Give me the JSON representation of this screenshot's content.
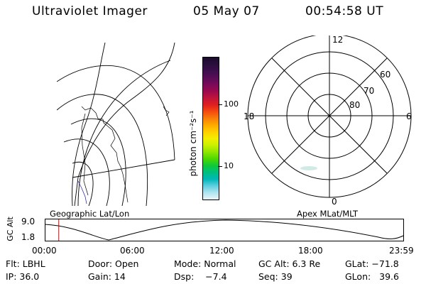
{
  "header": {
    "title": "Ultraviolet Imager",
    "date": "05 May 07",
    "time": "00:54:58 UT"
  },
  "colorbar": {
    "unit_label": "photon cm⁻²s⁻¹",
    "ticks": [
      "100",
      "10"
    ],
    "colors": [
      "#1a0a2e",
      "#2a0f3c",
      "#3d0e4d",
      "#5a0c57",
      "#7a0a5a",
      "#9c0a4e",
      "#c0143c",
      "#e01e1e",
      "#f54a10",
      "#fa7d0a",
      "#ffaa00",
      "#ffd000",
      "#f2ee00",
      "#c8f000",
      "#8ee600",
      "#4cd800",
      "#10c838",
      "#00c080",
      "#00b8b8",
      "#60d0e0",
      "#b0e4f0",
      "#e8f4f8"
    ]
  },
  "polar": {
    "labels_mlt": [
      "12",
      "18",
      "6",
      "0"
    ],
    "labels_lat": [
      "60",
      "70",
      "80"
    ]
  },
  "timeline": {
    "left_caption": "Geographic Lat/Lon",
    "right_caption": "Apex MLat/MLT",
    "y_axis_label": "GC Alt",
    "y_ticks": [
      "9.0",
      "1.8"
    ],
    "x_ticks": [
      "00:00",
      "06:00",
      "12:00",
      "18:00",
      "23:59"
    ],
    "marker_time_hours": 0.916,
    "marker_color": "#cc0000"
  },
  "info": {
    "row1": [
      "Flt: LBHL",
      "Door: Open",
      "Mode: Normal",
      "GC Alt: 6.3 Re",
      "GLat: −71.8"
    ],
    "row2": [
      "IP: 36.0",
      "Gain: 14",
      "Dsp:    −7.4",
      "Seq: 39",
      "GLon:   39.6"
    ]
  }
}
